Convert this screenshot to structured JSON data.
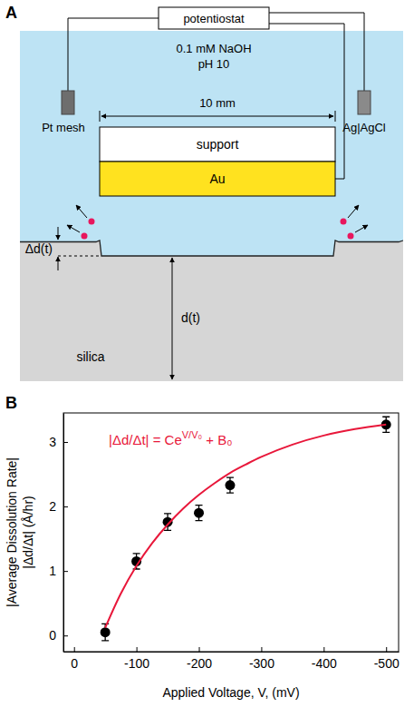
{
  "diagram": {
    "panel": "A",
    "instrument": "potentiostat",
    "solution": [
      "0.1 mM NaOH",
      "pH 10"
    ],
    "counter_electrode": "Pt mesh",
    "reference_electrode": "Ag|AgCl",
    "width_label": "10 mm",
    "support": "support",
    "electrode": "Au",
    "recess_label": "Δd(t)",
    "thickness_label": "d(t)",
    "substrate": "silica"
  },
  "chart_data": {
    "panel": "B",
    "type": "scatter",
    "xlabel": "Applied Voltage, V, (mV)",
    "ylabel": [
      "|Average Dissolution Rate|",
      "|Δd/Δt| (Å/hr)"
    ],
    "annotation": {
      "base": "|Δd/Δt| = Ce",
      "exponent": "V/V₀",
      "tail": " + B₀",
      "color": "#e8173a"
    },
    "xlim": [
      17,
      -520
    ],
    "xticks": [
      0,
      -100,
      -200,
      -300,
      -400,
      -500
    ],
    "ylim": [
      -0.25,
      3.45
    ],
    "yticks": [
      0,
      1,
      2,
      3
    ],
    "series": [
      {
        "type": "scatter",
        "color": "#000000",
        "marker": "circle",
        "x": [
          -50,
          -100,
          -150,
          -200,
          -250,
          -500
        ],
        "values": [
          0.05,
          1.15,
          1.76,
          1.9,
          2.33,
          3.27
        ],
        "errors": [
          0.13,
          0.12,
          0.13,
          0.12,
          0.12,
          0.12
        ]
      },
      {
        "type": "line",
        "color": "#e8173a",
        "line_style": "solid",
        "x": [
          -50,
          -75,
          -100,
          -125,
          -150,
          -175,
          -200,
          -225,
          -250,
          -275,
          -300,
          -350,
          -400,
          -450,
          -500
        ],
        "values": [
          0.12,
          0.65,
          1.08,
          1.43,
          1.72,
          1.97,
          2.18,
          2.36,
          2.52,
          2.65,
          2.77,
          2.96,
          3.1,
          3.2,
          3.27
        ]
      }
    ]
  }
}
